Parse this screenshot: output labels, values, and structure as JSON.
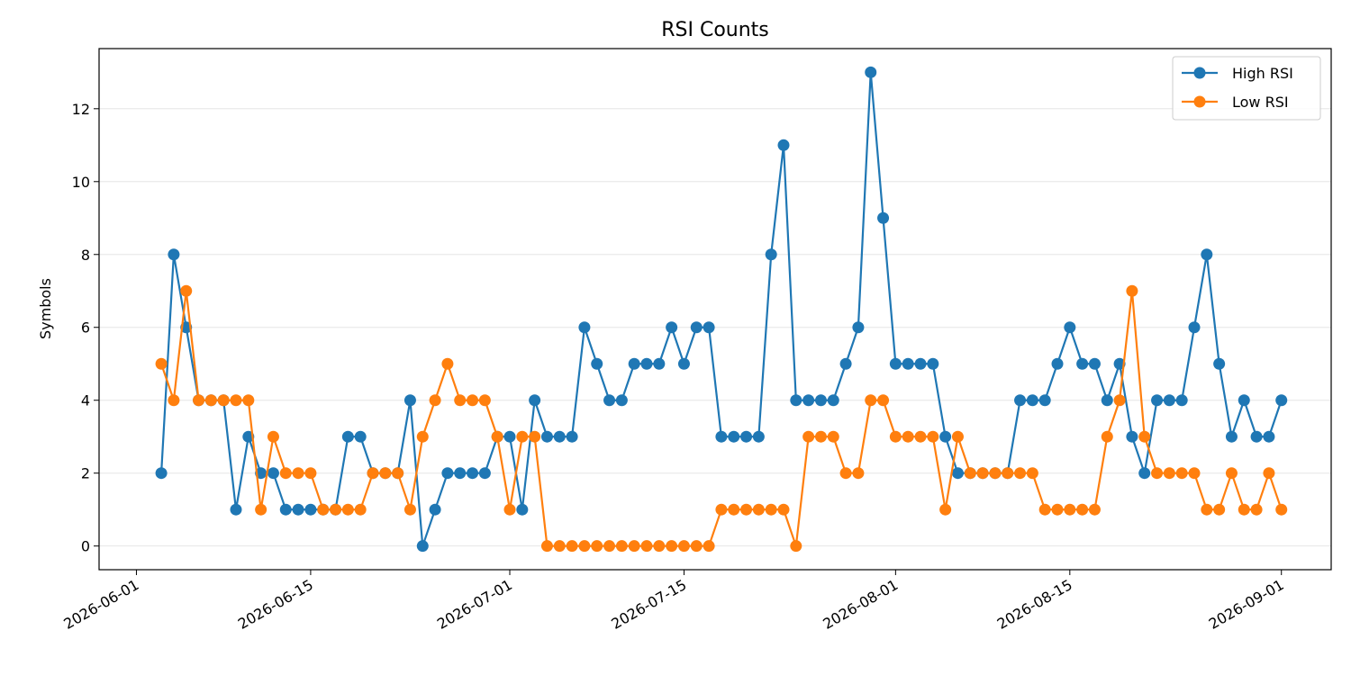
{
  "chart_data": {
    "type": "line",
    "title": "RSI Counts",
    "xlabel": "",
    "ylabel": "Symbols",
    "xlim": [
      "2026-05-29",
      "2026-09-05"
    ],
    "ylim": [
      -0.65,
      13.65
    ],
    "x_ticks": [
      "2026-06-01",
      "2026-06-15",
      "2026-07-01",
      "2026-07-15",
      "2026-08-01",
      "2026-08-15",
      "2026-09-01"
    ],
    "y_ticks": [
      0,
      2,
      4,
      6,
      8,
      10,
      12
    ],
    "grid": "horizontal",
    "legend_position": "top-right",
    "x_start": "2026-06-03",
    "x": [
      "2026-06-03",
      "2026-06-04",
      "2026-06-05",
      "2026-06-06",
      "2026-06-07",
      "2026-06-08",
      "2026-06-09",
      "2026-06-10",
      "2026-06-11",
      "2026-06-12",
      "2026-06-13",
      "2026-06-14",
      "2026-06-15",
      "2026-06-16",
      "2026-06-17",
      "2026-06-18",
      "2026-06-19",
      "2026-06-20",
      "2026-06-21",
      "2026-06-22",
      "2026-06-23",
      "2026-06-24",
      "2026-06-25",
      "2026-06-26",
      "2026-06-27",
      "2026-06-28",
      "2026-06-29",
      "2026-06-30",
      "2026-07-01",
      "2026-07-02",
      "2026-07-03",
      "2026-07-04",
      "2026-07-05",
      "2026-07-06",
      "2026-07-07",
      "2026-07-08",
      "2026-07-09",
      "2026-07-10",
      "2026-07-11",
      "2026-07-12",
      "2026-07-13",
      "2026-07-14",
      "2026-07-15",
      "2026-07-16",
      "2026-07-17",
      "2026-07-18",
      "2026-07-19",
      "2026-07-20",
      "2026-07-21",
      "2026-07-22",
      "2026-07-23",
      "2026-07-24",
      "2026-07-25",
      "2026-07-26",
      "2026-07-27",
      "2026-07-28",
      "2026-07-29",
      "2026-07-30",
      "2026-07-31",
      "2026-08-01",
      "2026-08-02",
      "2026-08-03",
      "2026-08-04",
      "2026-08-05",
      "2026-08-06",
      "2026-08-07",
      "2026-08-08",
      "2026-08-09",
      "2026-08-10",
      "2026-08-11",
      "2026-08-12",
      "2026-08-13",
      "2026-08-14",
      "2026-08-15",
      "2026-08-16",
      "2026-08-17",
      "2026-08-18",
      "2026-08-19",
      "2026-08-20",
      "2026-08-21",
      "2026-08-22",
      "2026-08-23",
      "2026-08-24",
      "2026-08-25",
      "2026-08-26",
      "2026-08-27",
      "2026-08-28",
      "2026-08-29",
      "2026-08-30",
      "2026-08-31",
      "2026-09-01"
    ],
    "series": [
      {
        "name": "High RSI",
        "color": "#1f77b4",
        "values": [
          2,
          8,
          6,
          4,
          4,
          4,
          1,
          3,
          2,
          2,
          1,
          1,
          1,
          1,
          1,
          3,
          3,
          2,
          2,
          2,
          4,
          0,
          1,
          2,
          2,
          2,
          2,
          3,
          3,
          1,
          4,
          3,
          3,
          3,
          6,
          5,
          4,
          4,
          5,
          5,
          5,
          6,
          5,
          6,
          6,
          3,
          3,
          3,
          3,
          8,
          11,
          4,
          4,
          4,
          4,
          5,
          6,
          13,
          9,
          5,
          5,
          5,
          5,
          3,
          2,
          2,
          2,
          2,
          2,
          4,
          4,
          4,
          5,
          6,
          5,
          5,
          4,
          5,
          3,
          2,
          4,
          4,
          4,
          6,
          8,
          5,
          3,
          4,
          3,
          3,
          4
        ]
      },
      {
        "name": "Low RSI",
        "color": "#ff7f0e",
        "values": [
          5,
          4,
          7,
          4,
          4,
          4,
          4,
          4,
          1,
          3,
          2,
          2,
          2,
          1,
          1,
          1,
          1,
          2,
          2,
          2,
          1,
          3,
          4,
          5,
          4,
          4,
          4,
          3,
          1,
          3,
          3,
          0,
          0,
          0,
          0,
          0,
          0,
          0,
          0,
          0,
          0,
          0,
          0,
          0,
          0,
          1,
          1,
          1,
          1,
          1,
          1,
          0,
          3,
          3,
          3,
          2,
          2,
          4,
          4,
          3,
          3,
          3,
          3,
          1,
          3,
          2,
          2,
          2,
          2,
          2,
          2,
          1,
          1,
          1,
          1,
          1,
          3,
          4,
          7,
          3,
          2,
          2,
          2,
          2,
          1,
          1,
          2,
          1,
          1,
          2,
          1
        ]
      }
    ]
  }
}
